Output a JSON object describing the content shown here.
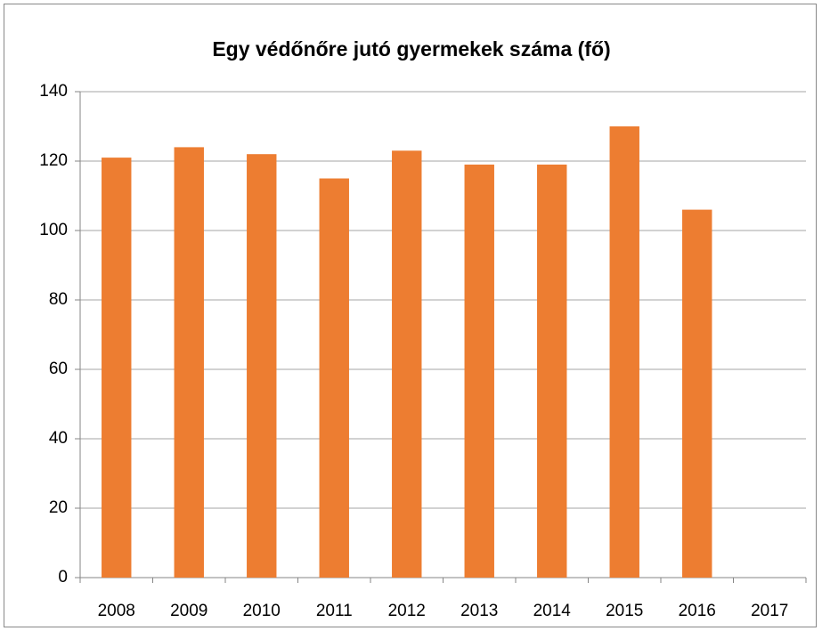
{
  "chart_data": {
    "type": "bar",
    "title": "Egy védőnőre jutó gyermekek száma (fő)",
    "categories": [
      "2008",
      "2009",
      "2010",
      "2011",
      "2012",
      "2013",
      "2014",
      "2015",
      "2016",
      "2017"
    ],
    "values": [
      121,
      124,
      122,
      115,
      123,
      119,
      119,
      130,
      106,
      null
    ],
    "color": "#ed7d31",
    "ylim": [
      0,
      140
    ],
    "yticks": [
      0,
      20,
      40,
      60,
      80,
      100,
      120,
      140
    ],
    "grid": true
  }
}
